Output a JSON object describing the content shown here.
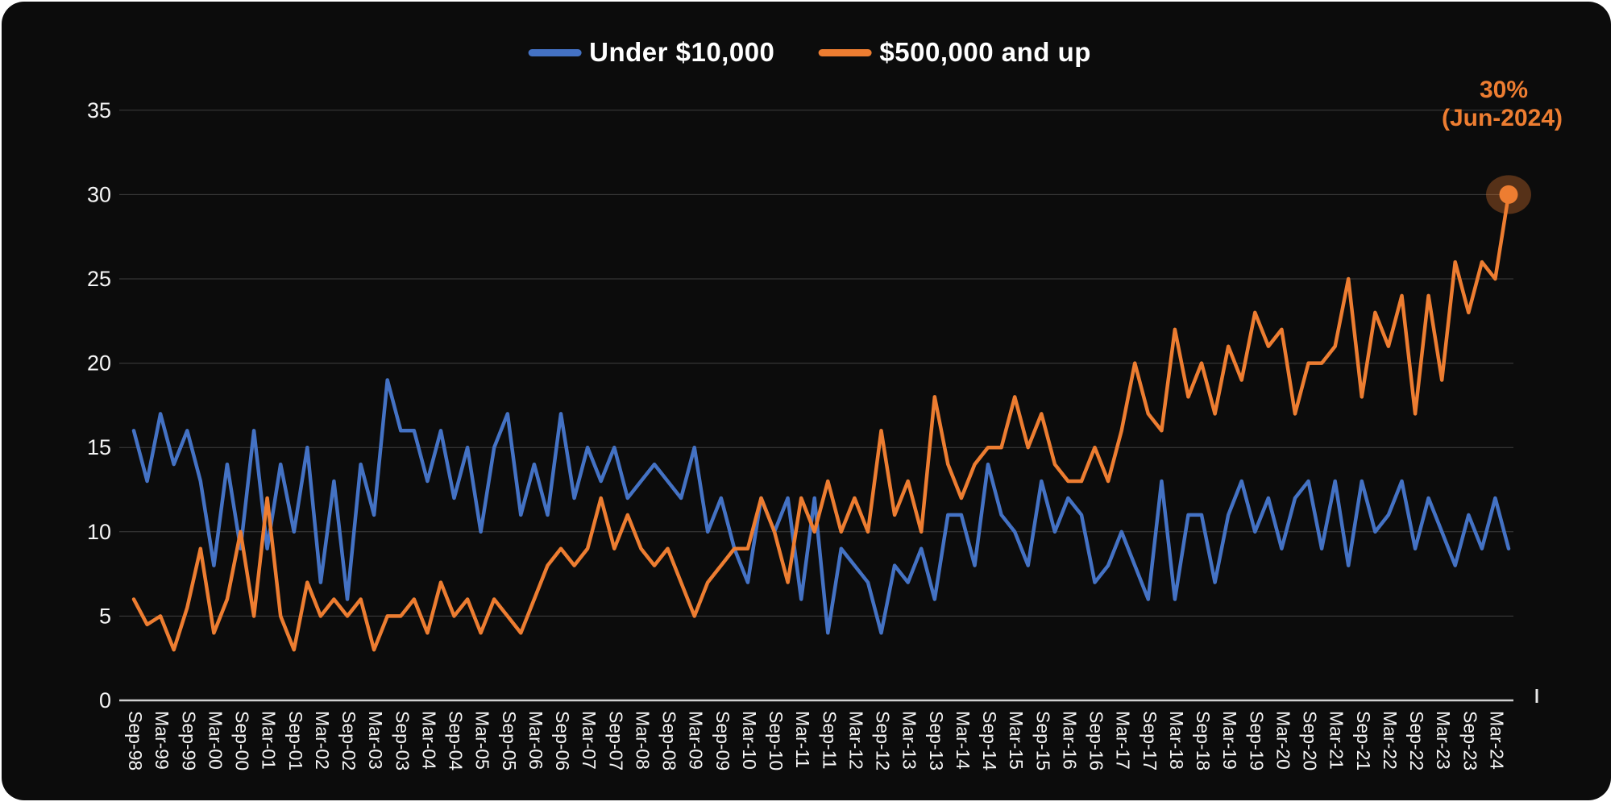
{
  "panel": {
    "background": "#0c0c0c",
    "page_background": "#ffffff"
  },
  "legend": [
    {
      "label": "Under $10,000",
      "color": "#4472C4"
    },
    {
      "label": "$500,000 and up",
      "color": "#ED7D31"
    }
  ],
  "annotation": {
    "line1": "30%",
    "line2": "(Jun-2024)",
    "color": "#ED7D31"
  },
  "chart_data": {
    "type": "line",
    "title": "",
    "xlabel": "",
    "ylabel": "",
    "ylim": [
      0,
      35
    ],
    "yticks": [
      0,
      5,
      10,
      15,
      20,
      25,
      30,
      35
    ],
    "grid": true,
    "legend_position": "top-center",
    "x_tick_every": 2,
    "x": [
      "Sep-98",
      "Dec-98",
      "Mar-99",
      "Jun-99",
      "Sep-99",
      "Dec-99",
      "Mar-00",
      "Jun-00",
      "Sep-00",
      "Dec-00",
      "Mar-01",
      "Jun-01",
      "Sep-01",
      "Dec-01",
      "Mar-02",
      "Jun-02",
      "Sep-02",
      "Dec-02",
      "Mar-03",
      "Jun-03",
      "Sep-03",
      "Dec-03",
      "Mar-04",
      "Jun-04",
      "Sep-04",
      "Dec-04",
      "Mar-05",
      "Jun-05",
      "Sep-05",
      "Dec-05",
      "Mar-06",
      "Jun-06",
      "Sep-06",
      "Dec-06",
      "Mar-07",
      "Jun-07",
      "Sep-07",
      "Dec-07",
      "Mar-08",
      "Jun-08",
      "Sep-08",
      "Dec-08",
      "Mar-09",
      "Jun-09",
      "Sep-09",
      "Dec-09",
      "Mar-10",
      "Jun-10",
      "Sep-10",
      "Dec-10",
      "Mar-11",
      "Jun-11",
      "Sep-11",
      "Dec-11",
      "Mar-12",
      "Jun-12",
      "Sep-12",
      "Dec-12",
      "Mar-13",
      "Jun-13",
      "Sep-13",
      "Dec-13",
      "Mar-14",
      "Jun-14",
      "Sep-14",
      "Dec-14",
      "Mar-15",
      "Jun-15",
      "Sep-15",
      "Dec-15",
      "Mar-16",
      "Jun-16",
      "Sep-16",
      "Dec-16",
      "Mar-17",
      "Jun-17",
      "Sep-17",
      "Dec-17",
      "Mar-18",
      "Jun-18",
      "Sep-18",
      "Dec-18",
      "Mar-19",
      "Jun-19",
      "Sep-19",
      "Dec-19",
      "Mar-20",
      "Jun-20",
      "Sep-20",
      "Dec-20",
      "Mar-21",
      "Jun-21",
      "Sep-21",
      "Dec-21",
      "Mar-22",
      "Jun-22",
      "Sep-22",
      "Dec-22",
      "Mar-23",
      "Jun-23",
      "Sep-23",
      "Dec-23",
      "Mar-24",
      "Jun-24"
    ],
    "series": [
      {
        "name": "Under $10,000",
        "color": "#4472C4",
        "values": [
          16,
          13,
          17,
          14,
          16,
          13,
          8,
          14,
          9,
          16,
          9,
          14,
          10,
          15,
          7,
          13,
          6,
          14,
          11,
          19,
          16,
          16,
          13,
          16,
          12,
          15,
          10,
          15,
          17,
          11,
          14,
          11,
          17,
          12,
          15,
          13,
          15,
          12,
          13,
          14,
          13,
          12,
          15,
          10,
          12,
          9,
          7,
          12,
          10,
          12,
          6,
          12,
          4,
          9,
          8,
          7,
          4,
          8,
          7,
          9,
          6,
          11,
          11,
          8,
          14,
          11,
          10,
          8,
          13,
          10,
          12,
          11,
          7,
          8,
          10,
          8,
          6,
          13,
          6,
          11,
          11,
          7,
          11,
          13,
          10,
          12,
          9,
          12,
          13,
          9,
          13,
          8,
          13,
          10,
          11,
          13,
          9,
          12,
          10,
          8,
          11,
          9,
          12,
          9
        ]
      },
      {
        "name": "$500,000 and up",
        "color": "#ED7D31",
        "values": [
          6,
          4.5,
          5,
          3,
          5.5,
          9,
          4,
          6,
          10,
          5,
          12,
          5,
          3,
          7,
          5,
          6,
          5,
          6,
          3,
          5,
          5,
          6,
          4,
          7,
          5,
          6,
          4,
          6,
          5,
          4,
          6,
          8,
          9,
          8,
          9,
          12,
          9,
          11,
          9,
          8,
          9,
          7,
          5,
          7,
          8,
          9,
          9,
          12,
          10,
          7,
          12,
          10,
          13,
          10,
          12,
          10,
          16,
          11,
          13,
          10,
          18,
          14,
          12,
          14,
          15,
          15,
          18,
          15,
          17,
          14,
          13,
          13,
          15,
          13,
          16,
          20,
          17,
          16,
          22,
          18,
          20,
          17,
          21,
          19,
          23,
          21,
          22,
          17,
          20,
          20,
          21,
          25,
          18,
          23,
          21,
          24,
          17,
          24,
          19,
          26,
          23,
          26,
          25,
          30
        ]
      }
    ],
    "endpoint_marker": {
      "series": "$500,000 and up",
      "x": "Jun-24",
      "value": 30,
      "color": "#ED7D31"
    }
  }
}
